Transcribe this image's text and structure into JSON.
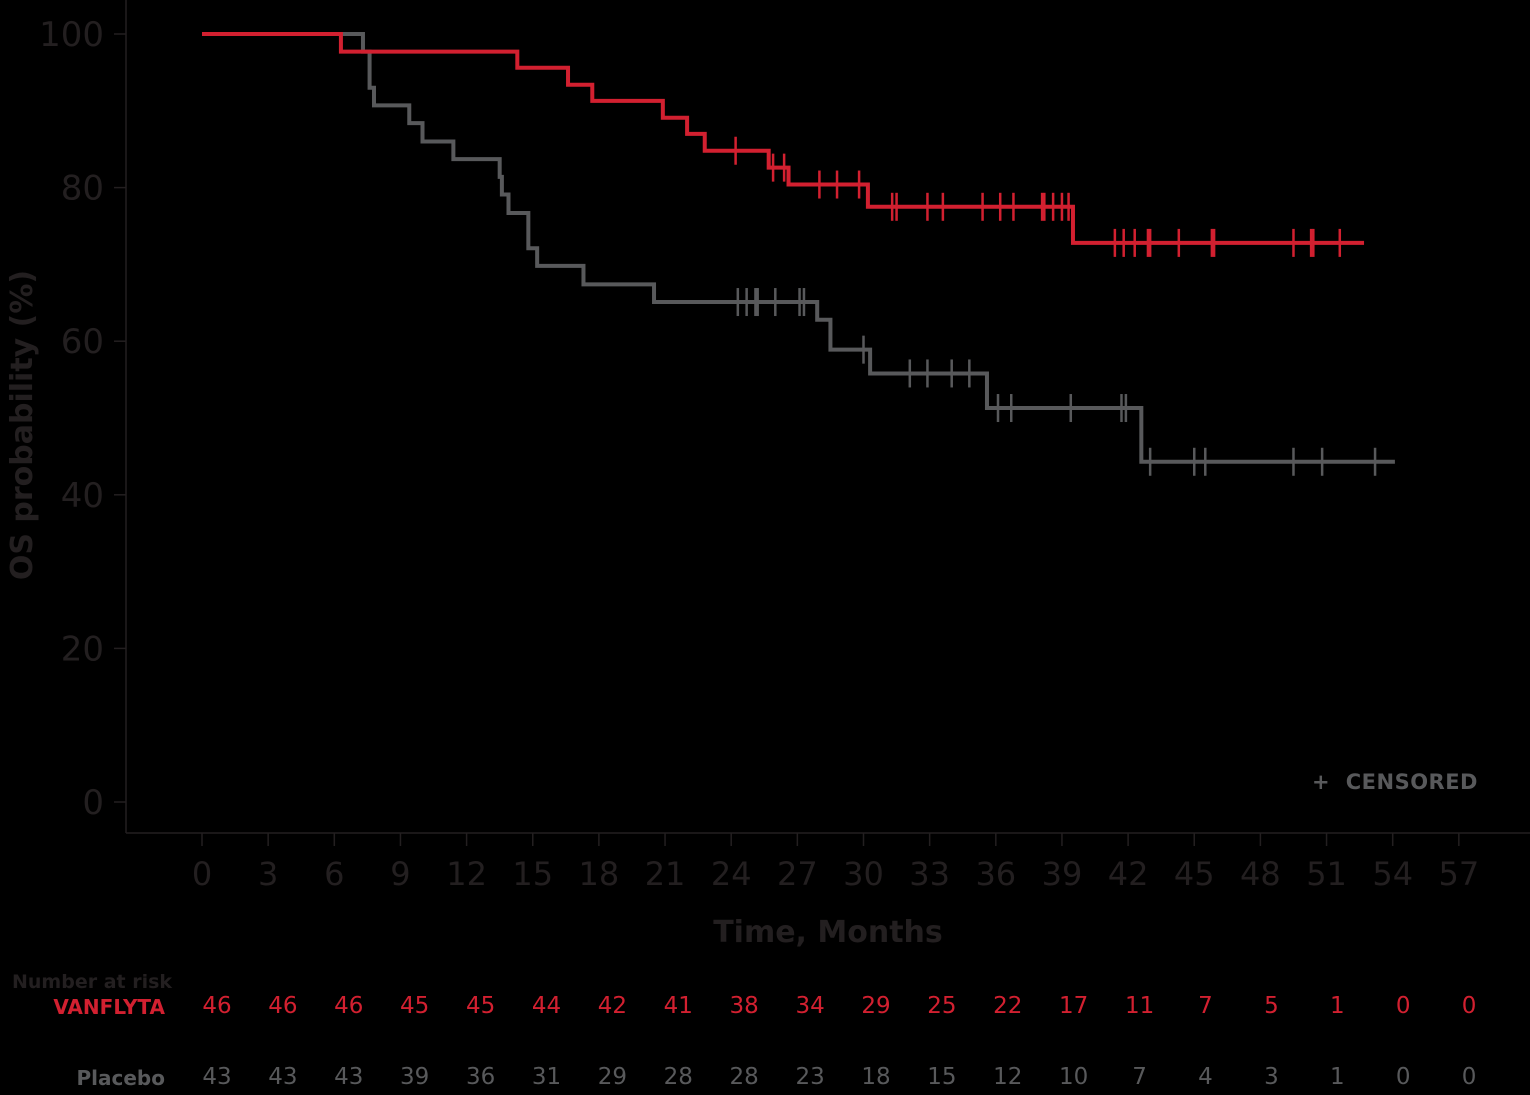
{
  "chart_data": {
    "type": "line",
    "subtype": "kaplan-meier-step",
    "title": "",
    "xlabel": "Time, Months",
    "ylabel": "OS probability (%)",
    "xlim": [
      0,
      57
    ],
    "ylim": [
      0,
      100
    ],
    "x_ticks": [
      0,
      3,
      6,
      9,
      12,
      15,
      18,
      21,
      24,
      27,
      30,
      33,
      36,
      39,
      42,
      45,
      48,
      51,
      54,
      57
    ],
    "y_ticks": [
      0,
      20,
      40,
      60,
      80,
      100
    ],
    "grid": false,
    "legend": {
      "position": "bottom-right",
      "entries": [
        {
          "symbol": "+",
          "label": "CENSORED"
        }
      ]
    },
    "colors": {
      "vanflyta": "#D22030",
      "placebo": "#58595B",
      "axis_text": "#231F20"
    },
    "series": [
      {
        "name": "VANFLYTA",
        "color": "#D22030",
        "steps": [
          {
            "t": 0,
            "v": 100
          },
          {
            "t": 6.3,
            "v": 97.7
          },
          {
            "t": 14.3,
            "v": 95.6
          },
          {
            "t": 16.6,
            "v": 93.4
          },
          {
            "t": 17.7,
            "v": 91.3
          },
          {
            "t": 20.9,
            "v": 89.1
          },
          {
            "t": 22.0,
            "v": 87.0
          },
          {
            "t": 22.8,
            "v": 84.8
          },
          {
            "t": 25.7,
            "v": 82.6
          },
          {
            "t": 26.6,
            "v": 80.4
          },
          {
            "t": 30.2,
            "v": 77.5
          },
          {
            "t": 39.5,
            "v": 72.8
          },
          {
            "t": 52.7,
            "v": 72.8
          }
        ],
        "censored": [
          24.2,
          25.9,
          26.4,
          28.0,
          28.8,
          29.8,
          31.3,
          31.5,
          32.9,
          33.6,
          35.4,
          36.2,
          36.8,
          38.1,
          38.2,
          38.6,
          39.0,
          39.3,
          41.4,
          41.8,
          42.3,
          42.9,
          43.0,
          44.3,
          45.8,
          45.9,
          49.5,
          50.3,
          50.4,
          51.6
        ]
      },
      {
        "name": "Placebo",
        "color": "#58595B",
        "steps": [
          {
            "t": 0,
            "v": 100
          },
          {
            "t": 7.3,
            "v": 97.7
          },
          {
            "t": 7.6,
            "v": 93.0
          },
          {
            "t": 7.8,
            "v": 90.7
          },
          {
            "t": 9.4,
            "v": 88.4
          },
          {
            "t": 10.0,
            "v": 86.0
          },
          {
            "t": 11.4,
            "v": 83.7
          },
          {
            "t": 13.5,
            "v": 81.4
          },
          {
            "t": 13.6,
            "v": 79.1
          },
          {
            "t": 13.9,
            "v": 76.7
          },
          {
            "t": 14.8,
            "v": 72.1
          },
          {
            "t": 15.2,
            "v": 69.8
          },
          {
            "t": 17.3,
            "v": 67.4
          },
          {
            "t": 20.5,
            "v": 65.1
          },
          {
            "t": 27.9,
            "v": 62.8
          },
          {
            "t": 28.5,
            "v": 58.9
          },
          {
            "t": 30.3,
            "v": 55.8
          },
          {
            "t": 35.6,
            "v": 51.3
          },
          {
            "t": 42.6,
            "v": 44.3
          },
          {
            "t": 54.1,
            "v": 44.3
          }
        ],
        "censored": [
          24.3,
          24.7,
          25.1,
          25.2,
          26.0,
          27.1,
          27.3,
          30.0,
          32.1,
          32.9,
          34.0,
          34.8,
          36.1,
          36.7,
          39.4,
          41.7,
          41.9,
          43.0,
          45.0,
          45.5,
          49.5,
          50.8,
          53.2
        ]
      }
    ],
    "number_at_risk": {
      "title": "Number at risk",
      "times": [
        0,
        3,
        6,
        9,
        12,
        15,
        18,
        21,
        24,
        27,
        30,
        33,
        36,
        39,
        42,
        45,
        48,
        51,
        54,
        57
      ],
      "rows": [
        {
          "label": "VANFLYTA",
          "color": "#D22030",
          "values": [
            46,
            46,
            46,
            45,
            45,
            44,
            42,
            41,
            38,
            34,
            29,
            25,
            22,
            17,
            11,
            7,
            5,
            1,
            0,
            0
          ]
        },
        {
          "label": "Placebo",
          "color": "#58595B",
          "values": [
            43,
            43,
            43,
            39,
            36,
            31,
            29,
            28,
            28,
            23,
            18,
            15,
            12,
            10,
            7,
            4,
            3,
            1,
            0,
            0
          ]
        }
      ]
    }
  },
  "legend": {
    "symbol": "+",
    "label": "CENSORED"
  },
  "axes": {
    "xlabel": "Time, Months",
    "ylabel": "OS probability (%)"
  }
}
